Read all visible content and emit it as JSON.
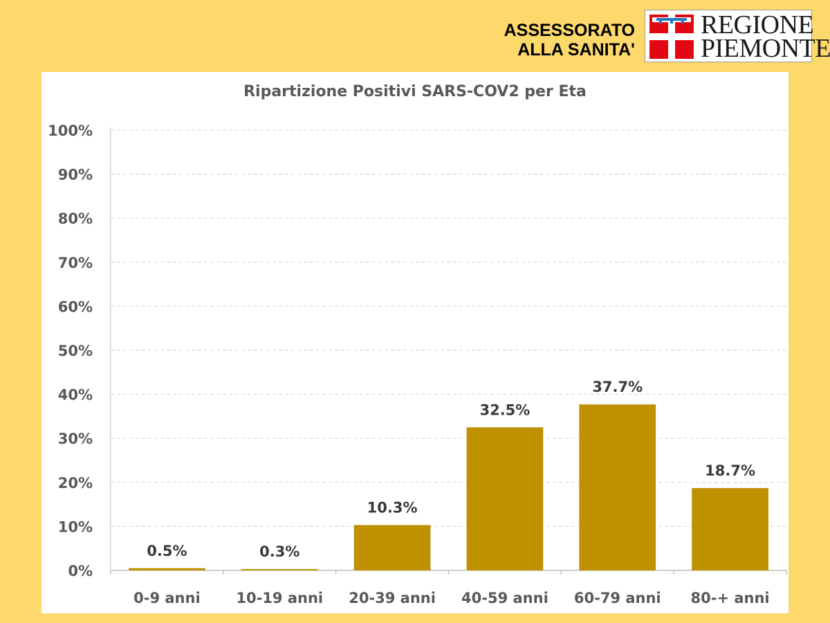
{
  "header": {
    "line1": "ASSESSORATO",
    "line2": "ALLA SANITA'",
    "logo_line1": "REGIONE",
    "logo_line2": "PIEMONTE",
    "logo_icon": "piemonte-coat-of-arms-icon"
  },
  "colors": {
    "background": "#fdd96c",
    "bar": "#bf9000",
    "logo_red": "#e30613",
    "logo_blue": "#1f7bc1",
    "label_text": "#3a3a3a",
    "axis_text": "#595959"
  },
  "chart_data": {
    "type": "bar",
    "title": "Ripartizione Positivi SARS-COV2 per Eta",
    "categories": [
      "0-9 anni",
      "10-19 anni",
      "20-39 anni",
      "40-59 anni",
      "60-79 anni",
      "80-+ anni"
    ],
    "values": [
      0.5,
      0.3,
      10.3,
      32.5,
      37.7,
      18.7
    ],
    "value_labels": [
      "0.5%",
      "0.3%",
      "10.3%",
      "32.5%",
      "37.7%",
      "18.7%"
    ],
    "yticks": [
      "0%",
      "10%",
      "20%",
      "30%",
      "40%",
      "50%",
      "60%",
      "70%",
      "80%",
      "90%",
      "100%"
    ],
    "ylim": [
      0,
      100
    ],
    "xlabel": "",
    "ylabel": "",
    "grid": "horizontal-dashed",
    "legend": "none"
  }
}
